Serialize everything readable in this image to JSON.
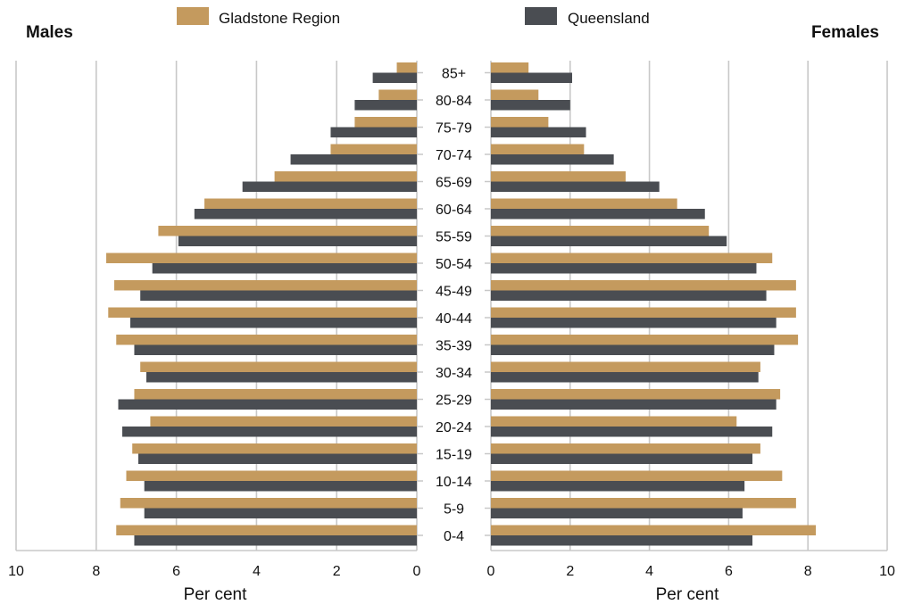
{
  "chart_data": {
    "type": "bar",
    "orientation": "horizontal",
    "layout": "population-pyramid",
    "left_panel_title": "Males",
    "right_panel_title": "Females",
    "categories": [
      "85+",
      "80-84",
      "75-79",
      "70-74",
      "65-69",
      "60-64",
      "55-59",
      "50-54",
      "45-49",
      "40-44",
      "35-39",
      "30-34",
      "25-29",
      "20-24",
      "15-19",
      "10-14",
      "5-9",
      "0-4"
    ],
    "series": [
      {
        "name": "Gladstone Region",
        "color": "#c49a5e",
        "males": [
          0.5,
          0.95,
          1.55,
          2.15,
          3.55,
          5.3,
          6.45,
          7.75,
          7.55,
          7.7,
          7.5,
          6.9,
          7.05,
          6.65,
          7.1,
          7.25,
          7.4,
          7.5
        ],
        "females": [
          0.95,
          1.2,
          1.45,
          2.35,
          3.4,
          4.7,
          5.5,
          7.1,
          7.7,
          7.7,
          7.75,
          6.8,
          7.3,
          6.2,
          6.8,
          7.35,
          7.7,
          8.2
        ]
      },
      {
        "name": "Queensland",
        "color": "#4a4d52",
        "males": [
          1.1,
          1.55,
          2.15,
          3.15,
          4.35,
          5.55,
          5.95,
          6.6,
          6.9,
          7.15,
          7.05,
          6.75,
          7.45,
          7.35,
          6.95,
          6.8,
          6.8,
          7.05
        ],
        "females": [
          2.05,
          2.0,
          2.4,
          3.1,
          4.25,
          5.4,
          5.95,
          6.7,
          6.95,
          7.2,
          7.15,
          6.75,
          7.2,
          7.1,
          6.6,
          6.4,
          6.35,
          6.6
        ]
      }
    ],
    "x_ticks": [
      10,
      8,
      6,
      4,
      2,
      0
    ],
    "x_ticks_right": [
      0,
      2,
      4,
      6,
      8,
      10
    ],
    "xlim": [
      0,
      10
    ],
    "xlabel_left": "Per cent",
    "xlabel_right": "Per cent",
    "grid": "vertical",
    "legend_position": "top"
  }
}
